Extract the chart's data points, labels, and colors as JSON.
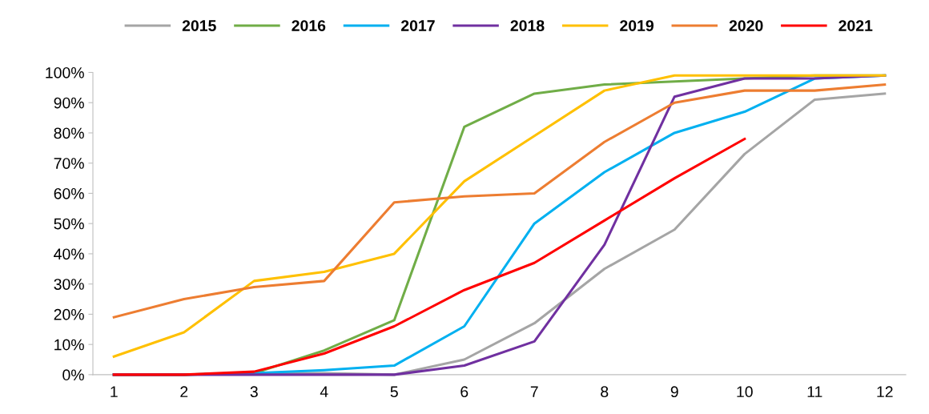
{
  "chart_data": {
    "type": "line",
    "categories": [
      "1",
      "2",
      "3",
      "4",
      "5",
      "6",
      "7",
      "8",
      "9",
      "10",
      "11",
      "12"
    ],
    "ylim": [
      0,
      100
    ],
    "yticks": [
      {
        "value": 0,
        "label": "0%"
      },
      {
        "value": 10,
        "label": "10%"
      },
      {
        "value": 20,
        "label": "20%"
      },
      {
        "value": 30,
        "label": "30%"
      },
      {
        "value": 40,
        "label": "40%"
      },
      {
        "value": 50,
        "label": "50%"
      },
      {
        "value": 60,
        "label": "60%"
      },
      {
        "value": 70,
        "label": "70%"
      },
      {
        "value": 80,
        "label": "80%"
      },
      {
        "value": 90,
        "label": "90%"
      },
      {
        "value": 100,
        "label": "100%"
      }
    ],
    "grid": false,
    "legend": "top",
    "marker": "none",
    "line_style": "solid",
    "series": [
      {
        "name": "2015",
        "color": "#a5a5a5",
        "values": [
          0,
          0,
          0.5,
          0.5,
          0,
          5,
          17,
          35,
          48,
          73,
          91,
          93
        ]
      },
      {
        "name": "2016",
        "color": "#70ad47",
        "values": [
          0,
          0,
          0.5,
          8,
          18,
          82,
          93,
          96,
          97,
          98,
          99,
          99
        ]
      },
      {
        "name": "2017",
        "color": "#00b0f0",
        "values": [
          0,
          0,
          0.5,
          1.5,
          3,
          16,
          50,
          67,
          80,
          87,
          98,
          99
        ]
      },
      {
        "name": "2018",
        "color": "#7030a0",
        "values": [
          0,
          0,
          0,
          0,
          0,
          3,
          11,
          43,
          92,
          98,
          98,
          99
        ]
      },
      {
        "name": "2019",
        "color": "#ffc000",
        "values": [
          6,
          14,
          31,
          34,
          40,
          64,
          79,
          94,
          99,
          99,
          99,
          99
        ]
      },
      {
        "name": "2020",
        "color": "#ed7d31",
        "values": [
          19,
          25,
          29,
          31,
          57,
          59,
          60,
          77,
          90,
          94,
          94,
          96
        ]
      },
      {
        "name": "2021",
        "color": "#ff0000",
        "values": [
          0,
          0,
          1,
          7,
          16,
          28,
          37,
          51,
          65,
          78,
          null,
          null
        ]
      }
    ]
  }
}
